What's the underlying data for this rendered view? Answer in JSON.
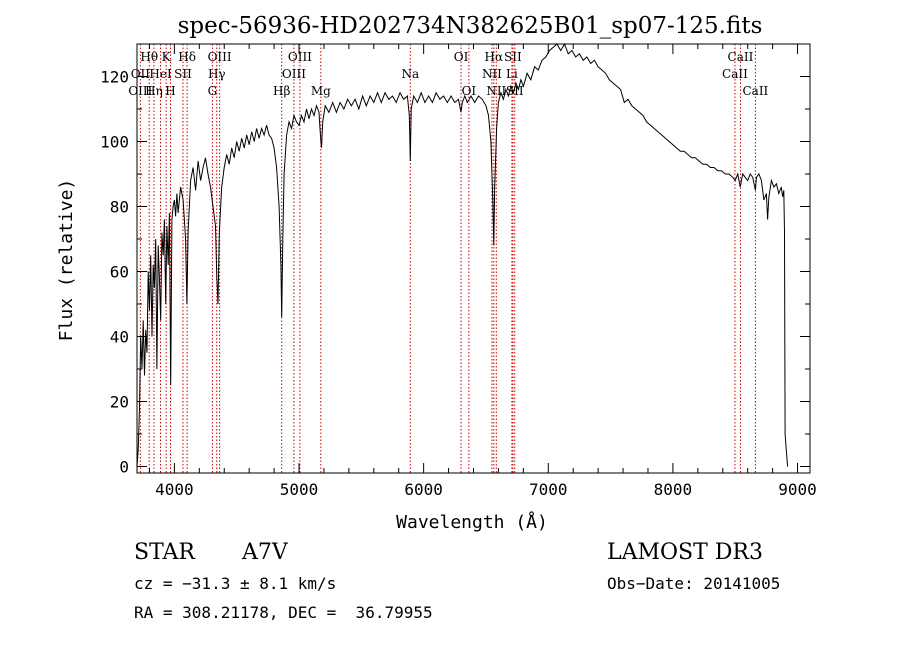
{
  "chart_data": {
    "type": "line",
    "title": "spec-56936-HD202734N382625B01_sp07-125.fits",
    "xlabel": "Wavelength (Å)",
    "ylabel": "Flux (relative)",
    "xlim": [
      3700,
      9100
    ],
    "ylim": [
      -2,
      130
    ],
    "xticks": [
      4000,
      5000,
      6000,
      7000,
      8000,
      9000
    ],
    "yticks": [
      0,
      20,
      40,
      60,
      80,
      100,
      120
    ],
    "grid": false,
    "series": [
      {
        "points": [
          [
            3700,
            0
          ],
          [
            3710,
            5
          ],
          [
            3720,
            18
          ],
          [
            3730,
            40
          ],
          [
            3740,
            30
          ],
          [
            3750,
            45
          ],
          [
            3760,
            28
          ],
          [
            3770,
            42
          ],
          [
            3780,
            35
          ],
          [
            3790,
            60
          ],
          [
            3800,
            48
          ],
          [
            3810,
            65
          ],
          [
            3820,
            40
          ],
          [
            3830,
            62
          ],
          [
            3840,
            55
          ],
          [
            3850,
            70
          ],
          [
            3860,
            30
          ],
          [
            3870,
            68
          ],
          [
            3880,
            58
          ],
          [
            3890,
            45
          ],
          [
            3900,
            72
          ],
          [
            3910,
            65
          ],
          [
            3920,
            76
          ],
          [
            3930,
            50
          ],
          [
            3940,
            74
          ],
          [
            3950,
            62
          ],
          [
            3960,
            78
          ],
          [
            3970,
            25
          ],
          [
            3980,
            76
          ],
          [
            3990,
            80
          ],
          [
            4000,
            82
          ],
          [
            4010,
            77
          ],
          [
            4020,
            84
          ],
          [
            4030,
            78
          ],
          [
            4050,
            86
          ],
          [
            4070,
            82
          ],
          [
            4090,
            70
          ],
          [
            4100,
            50
          ],
          [
            4110,
            72
          ],
          [
            4130,
            88
          ],
          [
            4150,
            92
          ],
          [
            4170,
            85
          ],
          [
            4190,
            94
          ],
          [
            4210,
            88
          ],
          [
            4230,
            92
          ],
          [
            4250,
            95
          ],
          [
            4270,
            90
          ],
          [
            4290,
            86
          ],
          [
            4310,
            80
          ],
          [
            4330,
            74
          ],
          [
            4340,
            58
          ],
          [
            4350,
            50
          ],
          [
            4360,
            72
          ],
          [
            4380,
            86
          ],
          [
            4400,
            92
          ],
          [
            4420,
            96
          ],
          [
            4440,
            93
          ],
          [
            4460,
            98
          ],
          [
            4480,
            95
          ],
          [
            4500,
            100
          ],
          [
            4520,
            97
          ],
          [
            4540,
            101
          ],
          [
            4560,
            98
          ],
          [
            4580,
            102
          ],
          [
            4600,
            99
          ],
          [
            4620,
            103
          ],
          [
            4640,
            100
          ],
          [
            4660,
            104
          ],
          [
            4680,
            101
          ],
          [
            4700,
            104
          ],
          [
            4720,
            102
          ],
          [
            4740,
            105
          ],
          [
            4760,
            102
          ],
          [
            4780,
            101
          ],
          [
            4800,
            98
          ],
          [
            4820,
            92
          ],
          [
            4840,
            80
          ],
          [
            4855,
            62
          ],
          [
            4861,
            46
          ],
          [
            4870,
            70
          ],
          [
            4880,
            90
          ],
          [
            4900,
            102
          ],
          [
            4920,
            106
          ],
          [
            4940,
            104
          ],
          [
            4960,
            108
          ],
          [
            4980,
            106
          ],
          [
            5000,
            105
          ],
          [
            5020,
            108
          ],
          [
            5040,
            106
          ],
          [
            5060,
            110
          ],
          [
            5080,
            107
          ],
          [
            5100,
            110
          ],
          [
            5120,
            108
          ],
          [
            5140,
            111
          ],
          [
            5160,
            109
          ],
          [
            5170,
            103
          ],
          [
            5180,
            98
          ],
          [
            5190,
            106
          ],
          [
            5210,
            111
          ],
          [
            5240,
            109
          ],
          [
            5270,
            112
          ],
          [
            5300,
            109
          ],
          [
            5330,
            112
          ],
          [
            5360,
            110
          ],
          [
            5390,
            113
          ],
          [
            5420,
            111
          ],
          [
            5450,
            113
          ],
          [
            5480,
            110
          ],
          [
            5510,
            114
          ],
          [
            5540,
            111
          ],
          [
            5570,
            114
          ],
          [
            5600,
            112
          ],
          [
            5630,
            115
          ],
          [
            5660,
            112
          ],
          [
            5690,
            115
          ],
          [
            5720,
            113
          ],
          [
            5750,
            114
          ],
          [
            5780,
            112
          ],
          [
            5810,
            115
          ],
          [
            5840,
            113
          ],
          [
            5870,
            114
          ],
          [
            5885,
            108
          ],
          [
            5893,
            94
          ],
          [
            5900,
            110
          ],
          [
            5920,
            114
          ],
          [
            5950,
            112
          ],
          [
            5980,
            115
          ],
          [
            6010,
            112
          ],
          [
            6040,
            114
          ],
          [
            6070,
            112
          ],
          [
            6100,
            115
          ],
          [
            6130,
            113
          ],
          [
            6160,
            114
          ],
          [
            6190,
            112
          ],
          [
            6220,
            114
          ],
          [
            6250,
            112
          ],
          [
            6280,
            113
          ],
          [
            6300,
            109
          ],
          [
            6310,
            112
          ],
          [
            6330,
            114
          ],
          [
            6350,
            112
          ],
          [
            6380,
            114
          ],
          [
            6410,
            112
          ],
          [
            6440,
            114
          ],
          [
            6470,
            113
          ],
          [
            6500,
            111
          ],
          [
            6520,
            108
          ],
          [
            6540,
            100
          ],
          [
            6555,
            82
          ],
          [
            6563,
            68
          ],
          [
            6570,
            86
          ],
          [
            6585,
            104
          ],
          [
            6600,
            112
          ],
          [
            6620,
            115
          ],
          [
            6640,
            113
          ],
          [
            6660,
            116
          ],
          [
            6680,
            114
          ],
          [
            6700,
            117
          ],
          [
            6720,
            115
          ],
          [
            6740,
            118
          ],
          [
            6760,
            116
          ],
          [
            6780,
            119
          ],
          [
            6800,
            117
          ],
          [
            6830,
            121
          ],
          [
            6860,
            119
          ],
          [
            6890,
            123
          ],
          [
            6920,
            122
          ],
          [
            6950,
            125
          ],
          [
            6980,
            126
          ],
          [
            7010,
            128
          ],
          [
            7040,
            129
          ],
          [
            7070,
            130
          ],
          [
            7100,
            128
          ],
          [
            7130,
            130
          ],
          [
            7160,
            127
          ],
          [
            7190,
            128
          ],
          [
            7220,
            126
          ],
          [
            7250,
            127
          ],
          [
            7280,
            125
          ],
          [
            7310,
            126
          ],
          [
            7340,
            124
          ],
          [
            7370,
            125
          ],
          [
            7400,
            123
          ],
          [
            7430,
            122
          ],
          [
            7460,
            121
          ],
          [
            7490,
            119
          ],
          [
            7520,
            118
          ],
          [
            7550,
            117
          ],
          [
            7580,
            116
          ],
          [
            7610,
            112
          ],
          [
            7640,
            113
          ],
          [
            7670,
            111
          ],
          [
            7700,
            110
          ],
          [
            7730,
            109
          ],
          [
            7760,
            108
          ],
          [
            7790,
            106
          ],
          [
            7820,
            105
          ],
          [
            7850,
            104
          ],
          [
            7880,
            103
          ],
          [
            7910,
            102
          ],
          [
            7940,
            101
          ],
          [
            7970,
            100
          ],
          [
            8000,
            99
          ],
          [
            8030,
            98
          ],
          [
            8060,
            97
          ],
          [
            8090,
            97
          ],
          [
            8120,
            96
          ],
          [
            8150,
            95
          ],
          [
            8180,
            95
          ],
          [
            8210,
            94
          ],
          [
            8240,
            93
          ],
          [
            8270,
            93
          ],
          [
            8300,
            92
          ],
          [
            8330,
            92
          ],
          [
            8360,
            91
          ],
          [
            8390,
            91
          ],
          [
            8420,
            90
          ],
          [
            8450,
            90
          ],
          [
            8480,
            89
          ],
          [
            8500,
            88
          ],
          [
            8520,
            90
          ],
          [
            8540,
            86
          ],
          [
            8560,
            90
          ],
          [
            8580,
            89
          ],
          [
            8600,
            88
          ],
          [
            8620,
            90
          ],
          [
            8640,
            89
          ],
          [
            8662,
            85
          ],
          [
            8670,
            89
          ],
          [
            8690,
            90
          ],
          [
            8710,
            88
          ],
          [
            8730,
            82
          ],
          [
            8750,
            84
          ],
          [
            8760,
            76
          ],
          [
            8770,
            83
          ],
          [
            8790,
            88
          ],
          [
            8810,
            86
          ],
          [
            8830,
            87
          ],
          [
            8850,
            84
          ],
          [
            8870,
            86
          ],
          [
            8880,
            83
          ],
          [
            8890,
            85
          ],
          [
            8895,
            72
          ],
          [
            8900,
            10
          ],
          [
            8910,
            5
          ],
          [
            8920,
            0
          ]
        ]
      }
    ],
    "annotations": [
      {
        "label": "Hθ",
        "x": 3798,
        "row": 1
      },
      {
        "label": "OII",
        "x": 3727,
        "row": 2
      },
      {
        "label": "OIII",
        "x": 3727,
        "row": 3
      },
      {
        "label": "Hη",
        "x": 3836,
        "row": 3
      },
      {
        "label": "HeI",
        "x": 3889,
        "row": 2
      },
      {
        "label": "K",
        "x": 3934,
        "row": 1
      },
      {
        "label": "H",
        "x": 3969,
        "row": 3
      },
      {
        "label": "SII",
        "x": 4069,
        "row": 2
      },
      {
        "label": "Hδ",
        "x": 4102,
        "row": 1
      },
      {
        "label": "OIII",
        "x": 4363,
        "row": 1
      },
      {
        "label": "Hγ",
        "x": 4340,
        "row": 2
      },
      {
        "label": "G",
        "x": 4305,
        "row": 3
      },
      {
        "label": "Hβ",
        "x": 4861,
        "row": 3
      },
      {
        "label": "OIII",
        "x": 4959,
        "row": 2
      },
      {
        "label": "OIII",
        "x": 5007,
        "row": 1
      },
      {
        "label": "Mg",
        "x": 5175,
        "row": 3
      },
      {
        "label": "Na",
        "x": 5893,
        "row": 2
      },
      {
        "label": "OI",
        "x": 6300,
        "row": 1
      },
      {
        "label": "OI",
        "x": 6363,
        "row": 3
      },
      {
        "label": "Hα",
        "x": 6563,
        "row": 1
      },
      {
        "label": "NII",
        "x": 6548,
        "row": 2
      },
      {
        "label": "NII",
        "x": 6583,
        "row": 3
      },
      {
        "label": "SII",
        "x": 6716,
        "row": 1
      },
      {
        "label": "Li",
        "x": 6708,
        "row": 2
      },
      {
        "label": "SII",
        "x": 6731,
        "row": 3
      },
      {
        "label": "CaII",
        "x": 8542,
        "row": 1
      },
      {
        "label": "CaII",
        "x": 8498,
        "row": 2
      },
      {
        "label": "CaII",
        "x": 8662,
        "row": 3
      }
    ],
    "line_markers": [
      3727,
      3798,
      3836,
      3889,
      3934,
      3969,
      4069,
      4102,
      4305,
      4340,
      4363,
      4861,
      4959,
      5007,
      5175,
      5893,
      6300,
      6363,
      6548,
      6563,
      6583,
      6708,
      6716,
      6731,
      8498,
      8542,
      8662
    ],
    "colors": {
      "spectrum": "#000000",
      "markers": "#cc0000",
      "axes": "#000000"
    }
  },
  "footer": {
    "object_class": "STAR",
    "subclass": "A7V",
    "survey": "LAMOST DR3",
    "cz": "cz = −31.3 ± 8.1 km/s",
    "obs_date": "Obs−Date: 20141005",
    "coords": "RA = 308.21178, DEC =  36.79955"
  }
}
